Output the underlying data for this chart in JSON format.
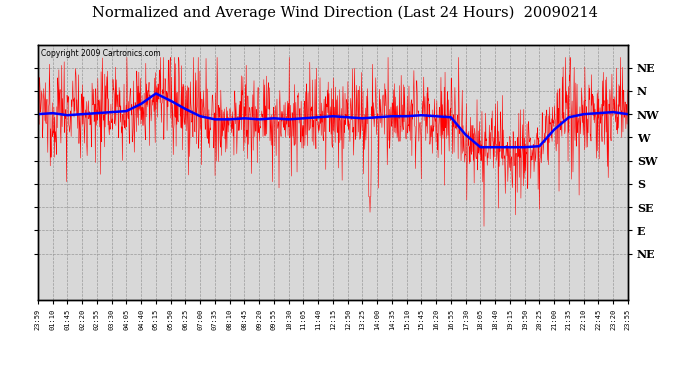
{
  "title": "Normalized and Average Wind Direction (Last 24 Hours)  20090214",
  "copyright": "Copyright 2009 Cartronics.com",
  "background_color": "#ffffff",
  "plot_bg_color": "#d8d8d8",
  "grid_color": "#aaaaaa",
  "red_line_color": "#ff0000",
  "blue_line_color": "#0000ff",
  "y_labels": [
    "NE",
    "N",
    "NW",
    "W",
    "SW",
    "S",
    "SE",
    "E",
    "NE"
  ],
  "y_vals": [
    360,
    337.5,
    315,
    292.5,
    270,
    247.5,
    225,
    202.5,
    180
  ],
  "ymin": 135,
  "ymax": 382,
  "xtick_labels": [
    "23:59",
    "01:10",
    "01:45",
    "02:20",
    "02:55",
    "03:30",
    "04:05",
    "04:40",
    "05:15",
    "05:50",
    "06:25",
    "07:00",
    "07:35",
    "08:10",
    "08:45",
    "09:20",
    "09:55",
    "10:30",
    "11:05",
    "11:40",
    "12:15",
    "12:50",
    "13:25",
    "14:00",
    "14:35",
    "15:10",
    "15:45",
    "16:20",
    "16:55",
    "17:30",
    "18:05",
    "18:40",
    "19:15",
    "19:50",
    "20:25",
    "21:00",
    "21:35",
    "22:10",
    "22:45",
    "23:20",
    "23:55"
  ]
}
